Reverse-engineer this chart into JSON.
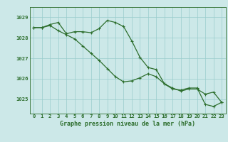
{
  "xlabel": "Graphe pression niveau de la mer (hPa)",
  "x_labels": [
    "0",
    "1",
    "2",
    "3",
    "4",
    "5",
    "6",
    "7",
    "8",
    "9",
    "10",
    "11",
    "12",
    "13",
    "14",
    "15",
    "16",
    "17",
    "18",
    "19",
    "20",
    "21",
    "22",
    "23"
  ],
  "ylim": [
    1024.3,
    1029.5
  ],
  "xlim": [
    -0.5,
    23.5
  ],
  "yticks": [
    1025,
    1026,
    1027,
    1028,
    1029
  ],
  "bg_color": "#cce8e8",
  "grid_color": "#99cccc",
  "line_color": "#2d6e2d",
  "line1_y": [
    1028.5,
    1028.5,
    1028.65,
    1028.75,
    1028.2,
    1028.3,
    1028.3,
    1028.25,
    1028.45,
    1028.85,
    1028.75,
    1028.55,
    1027.85,
    1027.05,
    1026.55,
    1026.45,
    1025.75,
    1025.5,
    1025.45,
    1025.55,
    1025.55,
    1024.75,
    1024.65,
    1024.85
  ],
  "line2_y": [
    1028.5,
    1028.5,
    1028.6,
    1028.35,
    1028.15,
    1027.95,
    1027.6,
    1027.25,
    1026.9,
    1026.5,
    1026.1,
    1025.85,
    1025.9,
    1026.05,
    1026.25,
    1026.1,
    1025.75,
    1025.55,
    1025.4,
    1025.5,
    1025.5,
    1025.25,
    1025.35,
    1024.85
  ],
  "title_fontsize": 6.0,
  "tick_fontsize": 5.2,
  "label_fontsize": 6.0
}
